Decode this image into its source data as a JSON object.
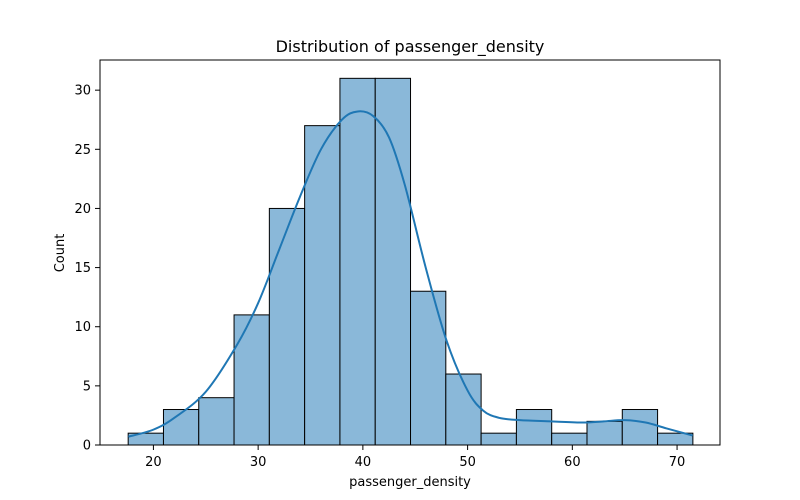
{
  "chart_data": {
    "type": "histogram",
    "title": "Distribution of passenger_density",
    "xlabel": "passenger_density",
    "ylabel": "Count",
    "xlim": [
      14.9,
      74.1
    ],
    "ylim": [
      0,
      32.55
    ],
    "x_ticks": [
      20,
      30,
      40,
      50,
      60,
      70
    ],
    "y_ticks": [
      0,
      5,
      10,
      15,
      20,
      25,
      30
    ],
    "grid": false,
    "bar_color": "#8ab8d9",
    "edge_color": "#000000",
    "kde_color": "#1f77b4",
    "bins": [
      {
        "x0": 17.59,
        "x1": 20.96,
        "count": 1
      },
      {
        "x0": 20.96,
        "x1": 24.33,
        "count": 3
      },
      {
        "x0": 24.33,
        "x1": 27.7,
        "count": 4
      },
      {
        "x0": 27.7,
        "x1": 31.07,
        "count": 11
      },
      {
        "x0": 31.07,
        "x1": 34.44,
        "count": 20
      },
      {
        "x0": 34.44,
        "x1": 37.81,
        "count": 27
      },
      {
        "x0": 37.81,
        "x1": 41.18,
        "count": 31
      },
      {
        "x0": 41.18,
        "x1": 44.55,
        "count": 31
      },
      {
        "x0": 44.55,
        "x1": 47.92,
        "count": 13
      },
      {
        "x0": 47.92,
        "x1": 51.29,
        "count": 6
      },
      {
        "x0": 51.29,
        "x1": 54.66,
        "count": 1
      },
      {
        "x0": 54.66,
        "x1": 58.03,
        "count": 3
      },
      {
        "x0": 58.03,
        "x1": 61.4,
        "count": 1
      },
      {
        "x0": 61.4,
        "x1": 64.77,
        "count": 2
      },
      {
        "x0": 64.77,
        "x1": 68.14,
        "count": 3
      },
      {
        "x0": 68.14,
        "x1": 71.51,
        "count": 1
      }
    ],
    "kde": [
      [
        17.6,
        0.7
      ],
      [
        20,
        1.3
      ],
      [
        22,
        2.3
      ],
      [
        25,
        4.5
      ],
      [
        28,
        8.5
      ],
      [
        30,
        12.0
      ],
      [
        32,
        16.5
      ],
      [
        34,
        21.0
      ],
      [
        36,
        25.0
      ],
      [
        38,
        27.5
      ],
      [
        39.5,
        28.2
      ],
      [
        41,
        27.8
      ],
      [
        42.5,
        26.0
      ],
      [
        44,
        22.0
      ],
      [
        46,
        15.0
      ],
      [
        48,
        8.8
      ],
      [
        50,
        4.6
      ],
      [
        51.5,
        2.9
      ],
      [
        53,
        2.3
      ],
      [
        55,
        2.1
      ],
      [
        58,
        2.0
      ],
      [
        61,
        1.9
      ],
      [
        63,
        2.0
      ],
      [
        65,
        2.1
      ],
      [
        67,
        1.9
      ],
      [
        69,
        1.4
      ],
      [
        71.5,
        0.8
      ]
    ]
  }
}
